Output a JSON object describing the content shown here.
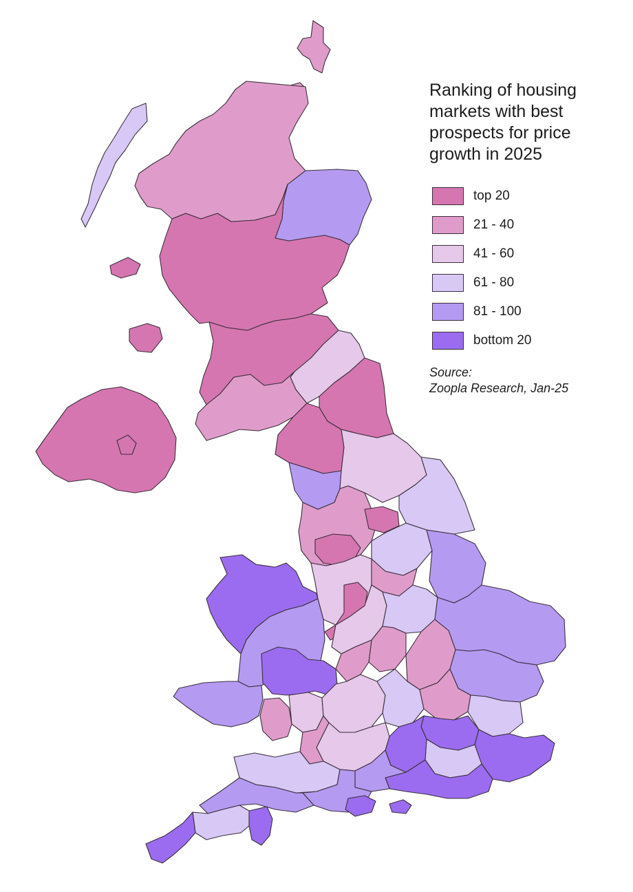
{
  "title": "Ranking of housing markets with best prospects for price growth in 2025",
  "legend": [
    {
      "label": "top 20",
      "color": "#d676b0"
    },
    {
      "label": "21 - 40",
      "color": "#df9cca"
    },
    {
      "label": "41 - 60",
      "color": "#e6c8ea"
    },
    {
      "label": "61 - 80",
      "color": "#d8c8f6"
    },
    {
      "label": "81 - 100",
      "color": "#b59af2"
    },
    {
      "label": "bottom 20",
      "color": "#9b6cf0"
    }
  ],
  "source": {
    "label": "Source:",
    "text": "Zoopla Research, Jan-25"
  }
}
